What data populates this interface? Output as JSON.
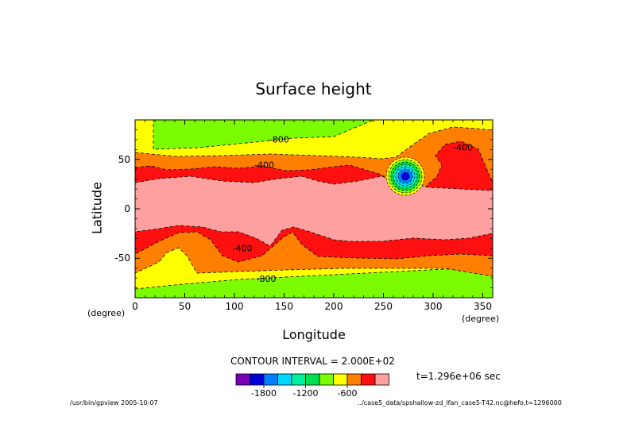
{
  "chart_data": {
    "type": "heatmap",
    "title": "Surface height",
    "xlabel": "Longitude",
    "ylabel": "Latitude",
    "x_unit_left": "(degree)",
    "x_unit_right": "(degree)",
    "xlim": [
      0,
      360
    ],
    "ylim": [
      -90,
      90
    ],
    "x_ticks": [
      0,
      50,
      100,
      150,
      200,
      250,
      300,
      350
    ],
    "y_ticks": [
      50,
      0,
      -50
    ],
    "contour_interval_text": "CONTOUR INTERVAL = 2.000E+02",
    "time_text": "t=1.296e+06 sec",
    "colorbar": {
      "colors": [
        "#7a00b4",
        "#0000d8",
        "#0080ff",
        "#00d8ff",
        "#00f0a0",
        "#00e050",
        "#7cfc00",
        "#ffff00",
        "#ff8000",
        "#ff1010",
        "#ffa0a0"
      ],
      "tick_labels": [
        "-1800",
        "-1200",
        "-600"
      ]
    },
    "contour_labels": [
      {
        "text": "-800",
        "lon": 145,
        "lat": 68
      },
      {
        "text": "-400",
        "lon": 130,
        "lat": 42
      },
      {
        "text": "-400",
        "lon": 330,
        "lat": 60
      },
      {
        "text": "-400",
        "lon": 108,
        "lat": -42
      },
      {
        "text": "-800",
        "lon": 132,
        "lat": -73
      }
    ],
    "features": {
      "vortex_center": {
        "lon": 270,
        "lat": 32
      }
    }
  },
  "footer": {
    "left": "/usr/bin/gpview  2005-10-07",
    "right": "../case5_data/spshallow-zd_lfan_case5-T42.nc@hefo,t=1296000"
  }
}
